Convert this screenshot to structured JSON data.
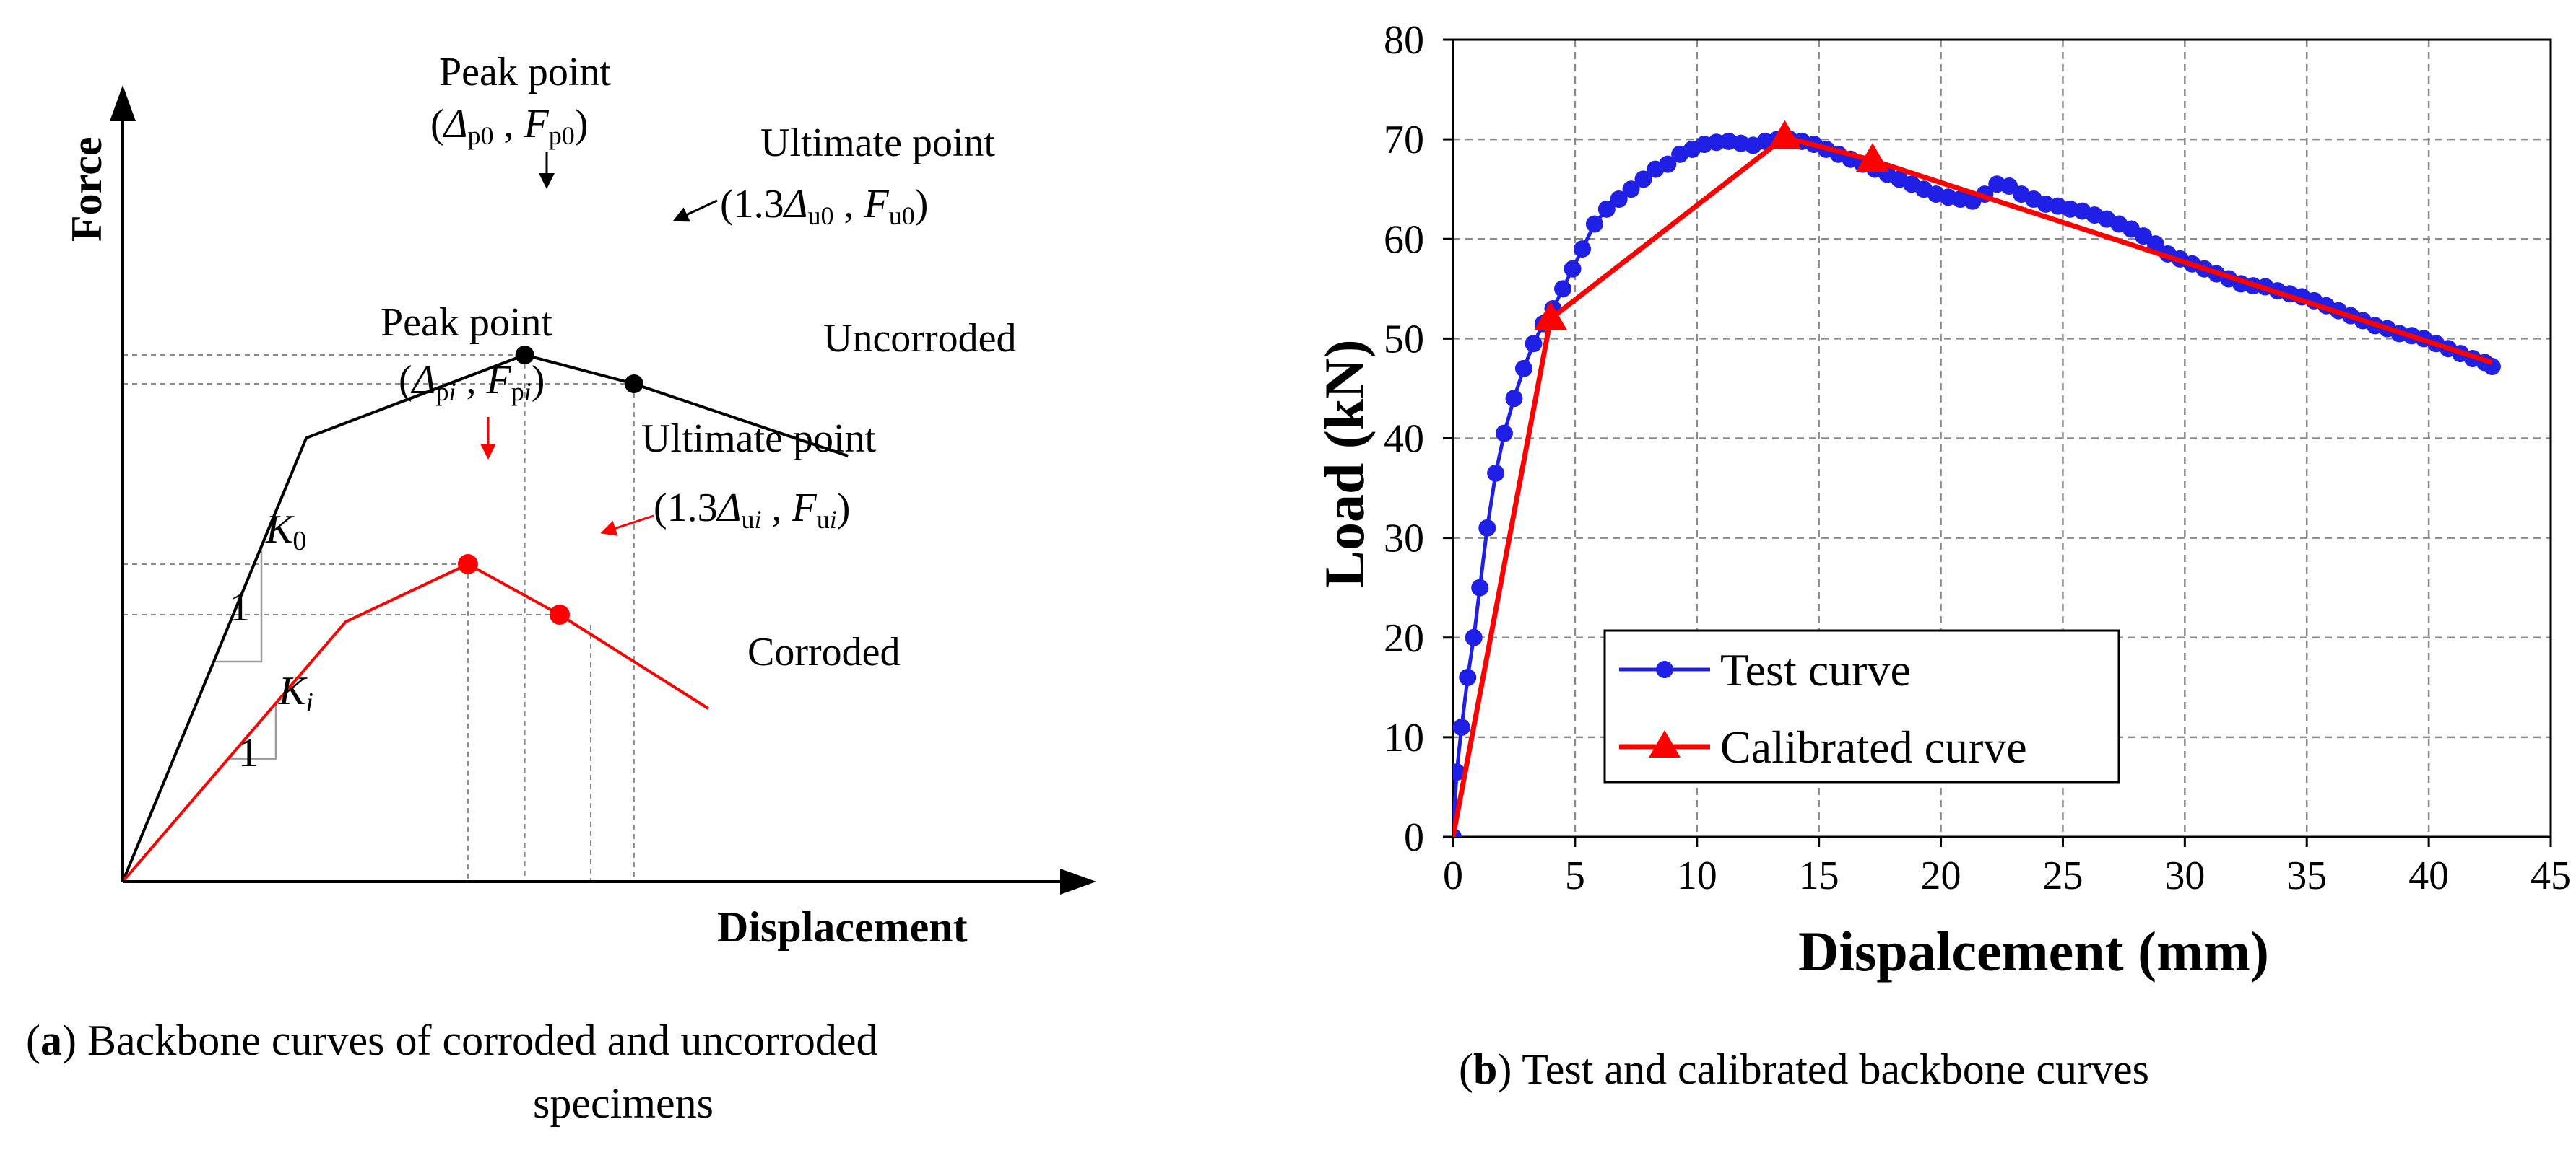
{
  "chart_data": [
    {
      "type": "line",
      "panel": "a",
      "xlabel": "Displacement",
      "ylabel": "Force",
      "caption_label": "a",
      "caption_text_1": ") Backbone curves of corroded and uncorroded",
      "caption_text_2": "specimens",
      "series": [
        {
          "name": "Uncorroded",
          "color": "#000000",
          "points": [
            [
              0,
              0
            ],
            [
              2.1,
              6.15
            ],
            [
              4.6,
              7.3
            ],
            [
              5.85,
              6.9
            ],
            [
              8.3,
              5.9
            ]
          ]
        },
        {
          "name": "Corroded",
          "color": "#ff0000",
          "points": [
            [
              0,
              0
            ],
            [
              2.55,
              3.6
            ],
            [
              3.95,
              4.4
            ],
            [
              5.0,
              3.7
            ],
            [
              6.7,
              2.4
            ]
          ]
        }
      ],
      "annotations": {
        "peak_label": "Peak point",
        "ultimate_label": "Ultimate point",
        "peak0_open": "(",
        "peak0_delta": "Δ",
        "peak0_delta_sub": "p0",
        "peak0_sep": " , ",
        "peak0_f": "F",
        "peak0_f_sub": "p0",
        "peak0_close": ")",
        "ult0_open": "(1.3",
        "ult0_delta": "Δ",
        "ult0_delta_sub": "u0",
        "ult0_sep": " , ",
        "ult0_f": "F",
        "ult0_f_sub": "u0",
        "ult0_close": ")",
        "peaki_open": "(",
        "peaki_delta": "Δ",
        "peaki_delta_sub": "p",
        "peaki_delta_sub_i": "i",
        "peaki_sep": " , ",
        "peaki_f": "F",
        "peaki_f_sub": "p",
        "peaki_f_sub_i": "i",
        "peaki_close": ")",
        "ulti_open": "(1.3",
        "ulti_delta": "Δ",
        "ulti_delta_sub": "u",
        "ulti_delta_sub_i": "i",
        "ulti_sep": " , ",
        "ulti_f": "F",
        "ulti_f_sub": "u",
        "ulti_f_sub_i": "i",
        "ulti_close": ")",
        "uncorroded_label": "Uncorroded",
        "corroded_label": "Corroded",
        "k0_k": "K",
        "k0_sub": "0",
        "ki_k": "K",
        "ki_sub": "i",
        "slope_run_1": "1",
        "slope_run_2": "1"
      }
    },
    {
      "type": "line",
      "panel": "b",
      "xlabel": "Dispalcement (mm)",
      "ylabel": "Load (kN)",
      "xlim": [
        0,
        45
      ],
      "ylim": [
        0,
        80
      ],
      "xticks": [
        "0",
        "5",
        "10",
        "15",
        "20",
        "25",
        "30",
        "35",
        "40",
        "45"
      ],
      "yticks": [
        "0",
        "10",
        "20",
        "30",
        "40",
        "50",
        "60",
        "70",
        "80"
      ],
      "grid": true,
      "legend_position": "center-left",
      "caption_label": "b",
      "caption_text": ") Test and calibrated backbone curves",
      "series": [
        {
          "name": "Test curve",
          "color": "#1f1fe6",
          "marker": "circle",
          "x": [
            0,
            0.15,
            0.35,
            0.6,
            0.85,
            1.1,
            1.4,
            1.75,
            2.1,
            2.5,
            2.9,
            3.3,
            3.7,
            4.1,
            4.5,
            4.9,
            5.3,
            5.8,
            6.3,
            6.8,
            7.3,
            7.8,
            8.3,
            8.8,
            9.3,
            9.8,
            10.3,
            10.8,
            11.3,
            11.8,
            12.3,
            12.8,
            13.3,
            13.8,
            14.3,
            14.8,
            15.3,
            15.8,
            16.3,
            16.8,
            17.3,
            17.8,
            18.3,
            18.8,
            19.3,
            19.8,
            20.3,
            20.8,
            21.3,
            21.8,
            22.3,
            22.8,
            23.3,
            23.8,
            24.3,
            24.8,
            25.3,
            25.8,
            26.3,
            26.8,
            27.3,
            27.8,
            28.3,
            28.8,
            29.3,
            29.8,
            30.3,
            30.8,
            31.3,
            31.8,
            32.3,
            32.8,
            33.3,
            33.8,
            34.3,
            34.8,
            35.3,
            35.8,
            36.3,
            36.8,
            37.3,
            37.8,
            38.3,
            38.8,
            39.3,
            39.8,
            40.3,
            40.8,
            41.3,
            41.8,
            42.3,
            42.6
          ],
          "y": [
            0,
            6.5,
            11,
            16,
            20,
            25,
            31,
            36.5,
            40.5,
            44,
            47,
            49.5,
            51.5,
            53,
            55,
            57,
            59,
            61.5,
            63,
            64,
            65,
            66,
            67,
            67.5,
            68.5,
            69,
            69.5,
            69.7,
            69.8,
            69.6,
            69.4,
            69.8,
            70,
            70,
            69.8,
            69.5,
            69,
            68.5,
            68,
            67.5,
            67,
            66.5,
            66,
            65.5,
            65,
            64.5,
            64.2,
            64,
            63.8,
            64.5,
            65.5,
            65.3,
            64.5,
            64,
            63.5,
            63.3,
            63,
            62.8,
            62.4,
            62,
            61.5,
            61,
            60.3,
            59.5,
            58.5,
            58,
            57.5,
            57,
            56.5,
            56,
            55.5,
            55.3,
            55.2,
            54.8,
            54.5,
            54.2,
            53.8,
            53.3,
            52.8,
            52.3,
            51.8,
            51.3,
            51,
            50.5,
            50.3,
            50,
            49.5,
            49,
            48.5,
            48,
            47.6,
            47.2
          ]
        },
        {
          "name": "Calibrated curve",
          "color": "#ff0000",
          "marker": "triangle",
          "x": [
            0,
            4.0,
            13.6,
            17.2,
            42.6
          ],
          "y": [
            0,
            52.0,
            70.2,
            67.9,
            47.6
          ]
        }
      ]
    }
  ]
}
